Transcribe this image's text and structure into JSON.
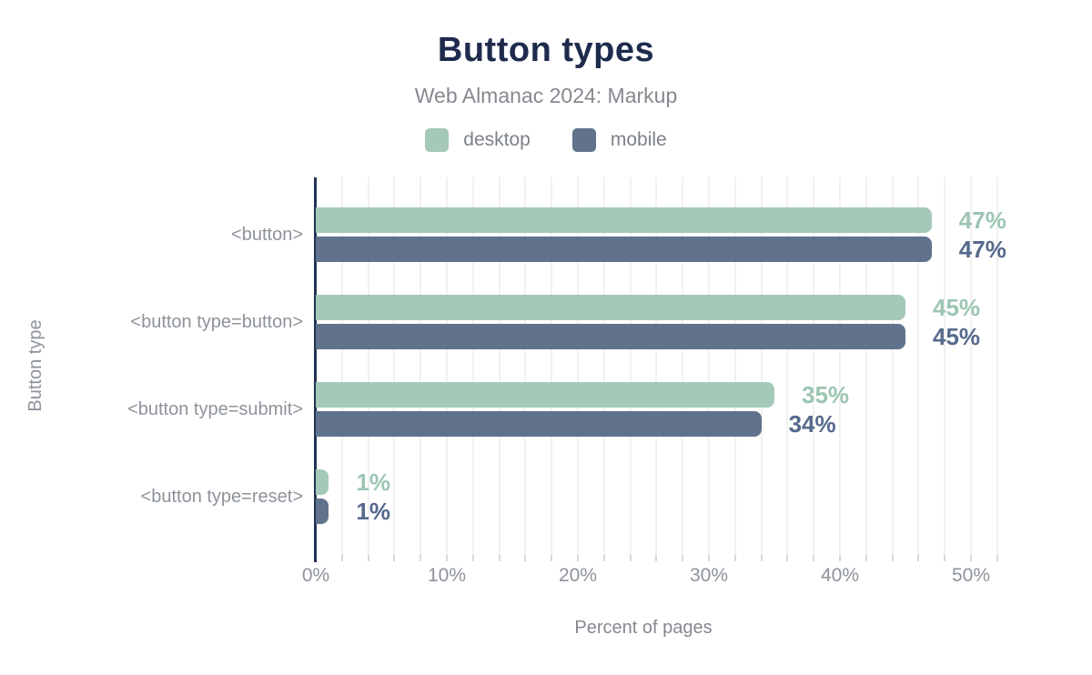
{
  "chart_data": {
    "type": "bar",
    "orientation": "horizontal",
    "title": "Button types",
    "subtitle": "Web Almanac 2024: Markup",
    "xlabel": "Percent of pages",
    "ylabel": "Button type",
    "categories": [
      "<button>",
      "<button type=button>",
      "<button type=submit>",
      "<button type=reset>"
    ],
    "series": [
      {
        "name": "desktop",
        "values": [
          47,
          45,
          35,
          1
        ],
        "labels": [
          "47%",
          "45%",
          "35%",
          "1%"
        ],
        "color": "#a4c9b8",
        "label_color": "#9cc5b1"
      },
      {
        "name": "mobile",
        "values": [
          47,
          45,
          34,
          1
        ],
        "labels": [
          "47%",
          "45%",
          "34%",
          "1%"
        ],
        "color": "#61728d",
        "label_color": "#56698c"
      }
    ],
    "x_ticks": [
      {
        "label": "0%",
        "value": 0
      },
      {
        "label": "10%",
        "value": 10
      },
      {
        "label": "20%",
        "value": 20
      },
      {
        "label": "30%",
        "value": 30
      },
      {
        "label": "40%",
        "value": 40
      },
      {
        "label": "50%",
        "value": 50
      }
    ],
    "xlim": [
      0,
      52
    ],
    "grid": "vertical",
    "grid_step": 2,
    "legend_position": "top",
    "colors": {
      "title": "#1f2b4d",
      "subtitle": "#85898f",
      "axis_text": "#8e939b",
      "axis_line": "#233354",
      "gridline": "#f1f1f1",
      "background": "#ffffff"
    }
  }
}
